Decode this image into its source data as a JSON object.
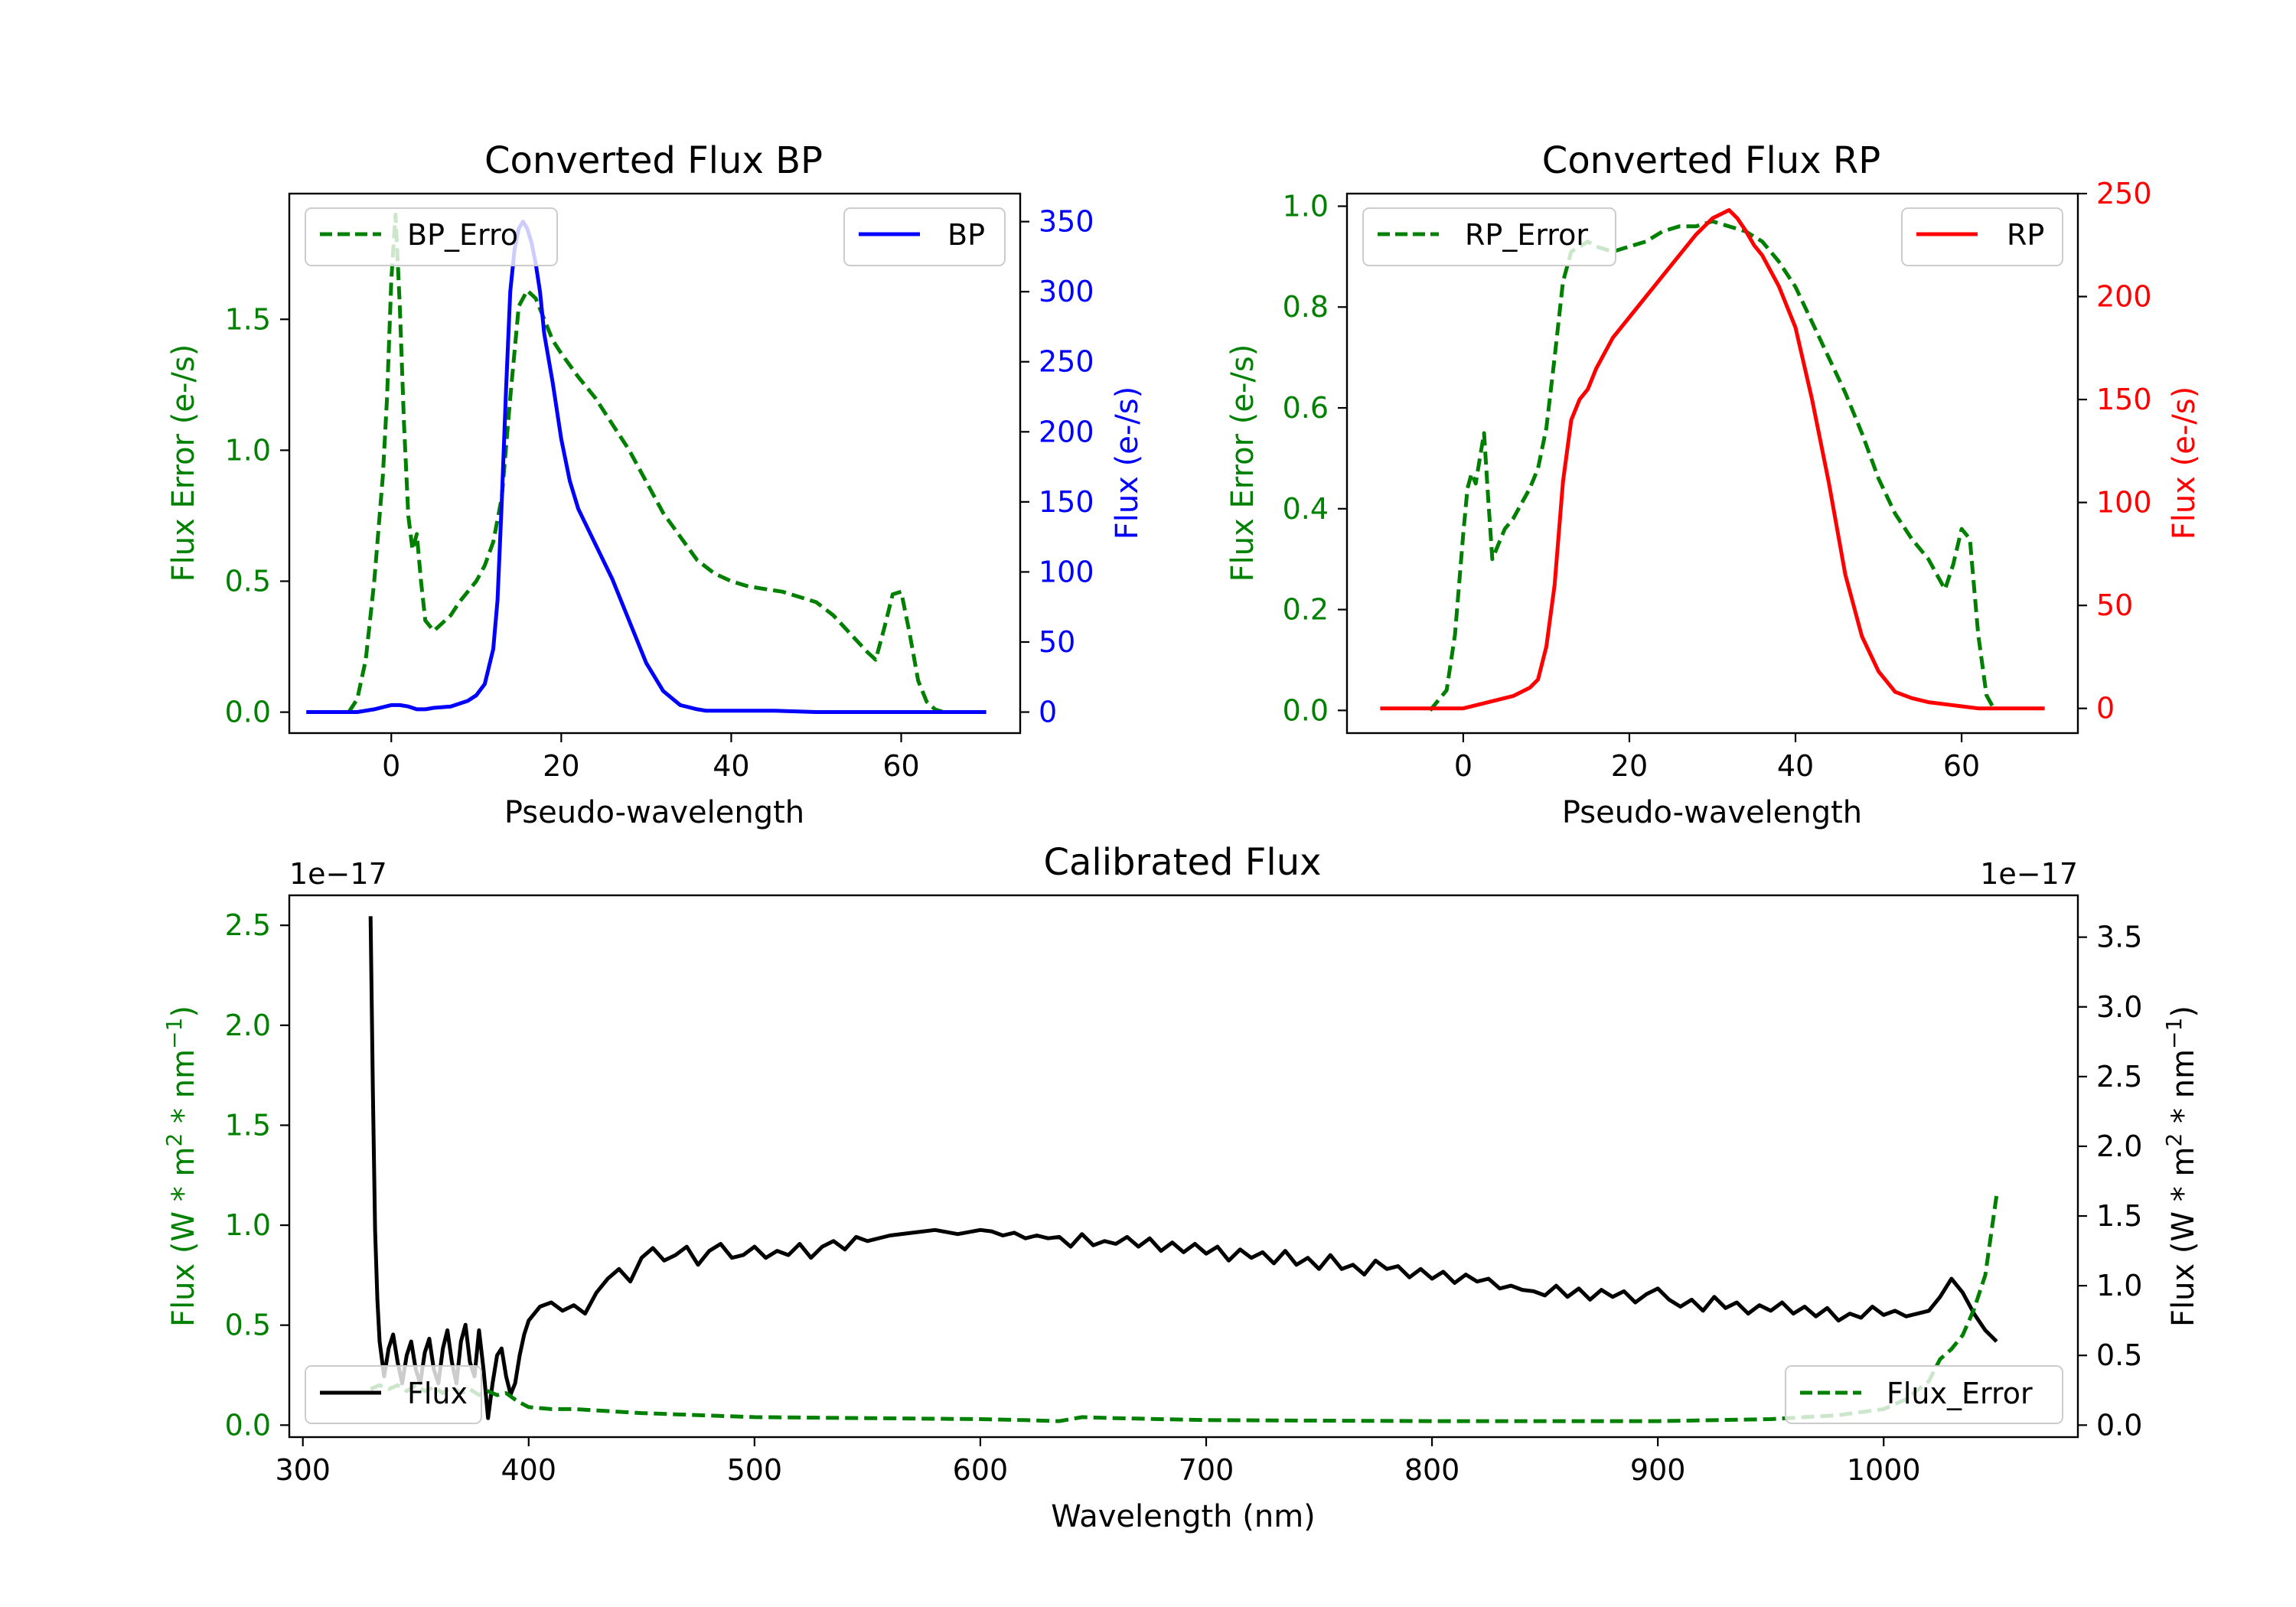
{
  "colors": {
    "error": "#008000",
    "bp": "#0000ff",
    "rp": "#ff0000",
    "flux": "#000000"
  },
  "chart_data": [
    {
      "type": "line",
      "id": "bp",
      "title": "Converted Flux BP",
      "xlabel": "Pseudo-wavelength",
      "ylabel_left": "Flux Error (e-/s)",
      "ylabel_right": "Flux (e-/s)",
      "xlim": [
        -12,
        74
      ],
      "ylim_left": [
        -0.08,
        1.98
      ],
      "ylim_right": [
        -15,
        370
      ],
      "xticks": [
        0,
        20,
        40,
        60
      ],
      "yticks_left": [
        0.0,
        0.5,
        1.0,
        1.5
      ],
      "yticks_right": [
        0,
        50,
        100,
        150,
        200,
        250,
        300,
        350
      ],
      "legend_left": "BP_Erro",
      "legend_right": "BP",
      "series": [
        {
          "name": "BP_Error",
          "axis": "left",
          "style": "dashed",
          "color": "#008000",
          "x": [
            -5,
            -4,
            -3,
            -2,
            -1,
            -0.5,
            0,
            0.5,
            1,
            1.5,
            2,
            2.5,
            3,
            3.5,
            4,
            5,
            6,
            7,
            8,
            9,
            10,
            11,
            12,
            13,
            14,
            15,
            16,
            17,
            18,
            19,
            20,
            22,
            24,
            26,
            28,
            30,
            32,
            34,
            36,
            38,
            40,
            42,
            44,
            46,
            48,
            50,
            52,
            54,
            56,
            57,
            58,
            59,
            60,
            61,
            62,
            63,
            64,
            65
          ],
          "y": [
            0.0,
            0.05,
            0.2,
            0.5,
            0.9,
            1.2,
            1.65,
            1.9,
            1.55,
            1.1,
            0.75,
            0.62,
            0.68,
            0.5,
            0.35,
            0.31,
            0.34,
            0.37,
            0.42,
            0.46,
            0.5,
            0.56,
            0.65,
            0.82,
            1.2,
            1.55,
            1.61,
            1.58,
            1.5,
            1.42,
            1.37,
            1.28,
            1.2,
            1.1,
            1.0,
            0.88,
            0.76,
            0.67,
            0.58,
            0.53,
            0.5,
            0.48,
            0.47,
            0.46,
            0.44,
            0.42,
            0.37,
            0.3,
            0.23,
            0.2,
            0.32,
            0.45,
            0.46,
            0.3,
            0.12,
            0.04,
            0.01,
            0.0
          ]
        },
        {
          "name": "BP",
          "axis": "right",
          "style": "solid",
          "color": "#0000ff",
          "x": [
            -10,
            -4,
            -2,
            0,
            1,
            2,
            3,
            4,
            5,
            7,
            9,
            10,
            11,
            12,
            12.5,
            13,
            13.5,
            14,
            14.5,
            15,
            15.5,
            16,
            16.5,
            17,
            17.5,
            18,
            19,
            20,
            21,
            22,
            24,
            26,
            28,
            30,
            32,
            34,
            36,
            37,
            38,
            40,
            45,
            50,
            55,
            60,
            65,
            70
          ],
          "y": [
            0,
            0,
            2,
            5,
            5,
            4,
            2,
            2,
            3,
            4,
            8,
            12,
            20,
            45,
            80,
            150,
            230,
            300,
            330,
            345,
            350,
            345,
            335,
            320,
            300,
            270,
            235,
            195,
            165,
            145,
            120,
            95,
            65,
            35,
            15,
            5,
            2,
            1,
            1,
            1,
            1,
            0,
            0,
            0,
            0,
            0
          ]
        }
      ]
    },
    {
      "type": "line",
      "id": "rp",
      "title": "Converted Flux RP",
      "xlabel": "Pseudo-wavelength",
      "ylabel_left": "Flux Error (e-/s)",
      "ylabel_right": "Flux (e-/s)",
      "xlim": [
        -14,
        74
      ],
      "ylim_left": [
        -0.045,
        1.025
      ],
      "ylim_right": [
        -12,
        250
      ],
      "xticks": [
        0,
        20,
        40,
        60
      ],
      "yticks_left": [
        0.0,
        0.2,
        0.4,
        0.6,
        0.8,
        1.0
      ],
      "yticks_right": [
        0,
        50,
        100,
        150,
        200,
        250
      ],
      "legend_left": "RP_Error",
      "legend_right": "RP",
      "series": [
        {
          "name": "RP_Error",
          "axis": "left",
          "style": "dashed",
          "color": "#008000",
          "x": [
            -4,
            -2,
            -1,
            0,
            0.5,
            1,
            1.5,
            2,
            2.5,
            3,
            3.5,
            4,
            5,
            6,
            7,
            8,
            9,
            10,
            11,
            12,
            13,
            14,
            15,
            16,
            18,
            20,
            22,
            24,
            26,
            28,
            30,
            32,
            34,
            36,
            38,
            40,
            42,
            44,
            46,
            48,
            50,
            52,
            54,
            56,
            57,
            58,
            59,
            60,
            61,
            62,
            63,
            64
          ],
          "y": [
            0.0,
            0.04,
            0.15,
            0.35,
            0.44,
            0.47,
            0.45,
            0.5,
            0.55,
            0.42,
            0.3,
            0.32,
            0.36,
            0.38,
            0.41,
            0.44,
            0.48,
            0.56,
            0.7,
            0.85,
            0.91,
            0.92,
            0.93,
            0.92,
            0.91,
            0.92,
            0.93,
            0.95,
            0.96,
            0.96,
            0.97,
            0.96,
            0.95,
            0.93,
            0.89,
            0.84,
            0.77,
            0.7,
            0.63,
            0.55,
            0.46,
            0.39,
            0.34,
            0.3,
            0.27,
            0.24,
            0.29,
            0.36,
            0.34,
            0.15,
            0.03,
            0.0
          ]
        },
        {
          "name": "RP",
          "axis": "right",
          "style": "solid",
          "color": "#ff0000",
          "x": [
            -10,
            0,
            2,
            4,
            6,
            8,
            9,
            10,
            11,
            12,
            13,
            14,
            15,
            16,
            18,
            20,
            22,
            24,
            26,
            28,
            30,
            31,
            32,
            33,
            34,
            35,
            36,
            38,
            40,
            42,
            44,
            46,
            48,
            50,
            52,
            54,
            56,
            58,
            60,
            62,
            64,
            66,
            70
          ],
          "y": [
            0,
            0,
            2,
            4,
            6,
            10,
            14,
            30,
            60,
            110,
            140,
            150,
            155,
            165,
            180,
            190,
            200,
            210,
            220,
            230,
            238,
            240,
            242,
            238,
            232,
            225,
            220,
            205,
            185,
            150,
            110,
            65,
            35,
            18,
            8,
            5,
            3,
            2,
            1,
            0,
            0,
            0,
            0
          ]
        }
      ]
    },
    {
      "type": "line",
      "id": "cal",
      "title": "Calibrated Flux",
      "xlabel": "Wavelength (nm)",
      "ylabel_left": "Flux (W * m² * nm⁻¹)",
      "ylabel_right": "Flux (W * m² * nm⁻¹)",
      "offset_left": "1e−17",
      "offset_right": "1e−17",
      "xlim": [
        294,
        1086
      ],
      "ylim_left": [
        -0.06,
        2.65
      ],
      "ylim_right": [
        -0.086,
        3.8
      ],
      "xticks": [
        300,
        400,
        500,
        600,
        700,
        800,
        900,
        1000
      ],
      "yticks_left": [
        0.0,
        0.5,
        1.0,
        1.5,
        2.0,
        2.5
      ],
      "yticks_right": [
        0.0,
        0.5,
        1.0,
        1.5,
        2.0,
        2.5,
        3.0,
        3.5
      ],
      "legend_left": "Flux",
      "legend_right": "Flux_Error",
      "series": [
        {
          "name": "Flux",
          "axis": "right",
          "style": "solid",
          "color": "#000000",
          "x": [
            330,
            331,
            332,
            333,
            334,
            336,
            338,
            340,
            342,
            344,
            346,
            348,
            350,
            352,
            354,
            356,
            358,
            360,
            362,
            364,
            366,
            368,
            370,
            372,
            374,
            376,
            378,
            380,
            382,
            384,
            386,
            388,
            390,
            392,
            394,
            396,
            398,
            400,
            405,
            410,
            415,
            420,
            425,
            430,
            435,
            440,
            445,
            450,
            455,
            460,
            465,
            470,
            475,
            480,
            485,
            490,
            495,
            500,
            505,
            510,
            515,
            520,
            525,
            530,
            535,
            540,
            545,
            550,
            560,
            570,
            580,
            590,
            600,
            605,
            610,
            615,
            620,
            625,
            630,
            635,
            640,
            645,
            650,
            655,
            660,
            665,
            670,
            675,
            680,
            685,
            690,
            695,
            700,
            705,
            710,
            715,
            720,
            725,
            730,
            735,
            740,
            745,
            750,
            755,
            760,
            765,
            770,
            775,
            780,
            785,
            790,
            795,
            800,
            805,
            810,
            815,
            820,
            825,
            830,
            835,
            840,
            845,
            850,
            855,
            860,
            865,
            870,
            875,
            880,
            885,
            890,
            895,
            900,
            905,
            910,
            915,
            920,
            925,
            930,
            935,
            940,
            945,
            950,
            955,
            960,
            965,
            970,
            975,
            980,
            985,
            990,
            995,
            1000,
            1005,
            1010,
            1015,
            1020,
            1025,
            1030,
            1035,
            1040,
            1045,
            1050
          ],
          "y": [
            3.65,
            2.4,
            1.4,
            0.9,
            0.6,
            0.35,
            0.55,
            0.65,
            0.45,
            0.3,
            0.5,
            0.6,
            0.4,
            0.3,
            0.52,
            0.62,
            0.4,
            0.3,
            0.55,
            0.68,
            0.45,
            0.3,
            0.6,
            0.72,
            0.45,
            0.35,
            0.68,
            0.4,
            0.05,
            0.3,
            0.5,
            0.55,
            0.35,
            0.22,
            0.3,
            0.5,
            0.65,
            0.75,
            0.85,
            0.88,
            0.82,
            0.86,
            0.8,
            0.95,
            1.05,
            1.12,
            1.03,
            1.2,
            1.27,
            1.18,
            1.22,
            1.28,
            1.15,
            1.25,
            1.3,
            1.2,
            1.22,
            1.28,
            1.2,
            1.25,
            1.22,
            1.3,
            1.2,
            1.28,
            1.32,
            1.26,
            1.35,
            1.32,
            1.36,
            1.38,
            1.4,
            1.37,
            1.4,
            1.39,
            1.36,
            1.38,
            1.34,
            1.36,
            1.34,
            1.35,
            1.28,
            1.37,
            1.29,
            1.32,
            1.3,
            1.35,
            1.28,
            1.34,
            1.25,
            1.31,
            1.24,
            1.3,
            1.23,
            1.28,
            1.18,
            1.26,
            1.2,
            1.24,
            1.16,
            1.25,
            1.15,
            1.2,
            1.12,
            1.22,
            1.12,
            1.15,
            1.08,
            1.18,
            1.12,
            1.14,
            1.06,
            1.12,
            1.05,
            1.1,
            1.02,
            1.08,
            1.03,
            1.05,
            0.98,
            1.0,
            0.97,
            0.96,
            0.93,
            1.0,
            0.92,
            0.98,
            0.9,
            0.97,
            0.92,
            0.96,
            0.88,
            0.94,
            0.98,
            0.9,
            0.85,
            0.9,
            0.82,
            0.92,
            0.84,
            0.88,
            0.8,
            0.86,
            0.82,
            0.88,
            0.8,
            0.85,
            0.78,
            0.84,
            0.75,
            0.8,
            0.77,
            0.85,
            0.79,
            0.82,
            0.78,
            0.8,
            0.82,
            0.92,
            1.05,
            0.95,
            0.8,
            0.68,
            0.6
          ]
        },
        {
          "name": "Flux_Error",
          "axis": "left",
          "style": "dashed",
          "color": "#008000",
          "x": [
            330,
            334,
            338,
            342,
            346,
            350,
            354,
            358,
            362,
            366,
            370,
            374,
            378,
            382,
            386,
            390,
            395,
            400,
            410,
            420,
            450,
            500,
            550,
            600,
            620,
            635,
            645,
            660,
            700,
            800,
            900,
            950,
            980,
            1000,
            1010,
            1020,
            1025,
            1030,
            1035,
            1040,
            1045,
            1050
          ],
          "y": [
            0.18,
            0.2,
            0.18,
            0.2,
            0.17,
            0.2,
            0.17,
            0.19,
            0.16,
            0.19,
            0.16,
            0.18,
            0.15,
            0.17,
            0.15,
            0.16,
            0.12,
            0.09,
            0.08,
            0.08,
            0.06,
            0.04,
            0.035,
            0.03,
            0.025,
            0.02,
            0.04,
            0.035,
            0.025,
            0.02,
            0.02,
            0.03,
            0.05,
            0.08,
            0.13,
            0.22,
            0.33,
            0.38,
            0.45,
            0.58,
            0.75,
            1.15
          ]
        }
      ]
    }
  ]
}
